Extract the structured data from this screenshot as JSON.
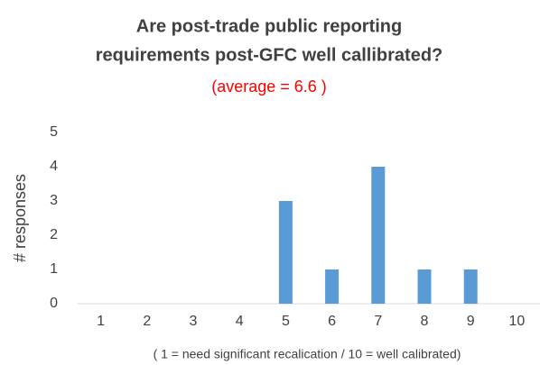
{
  "chart_data": {
    "type": "bar",
    "title": [
      "Are post-trade public reporting",
      "requirements post-GFC well callibrated?"
    ],
    "subtitle": "(average = 6.6 )",
    "x_label": "( 1 = need significant recalication / 10 = well calibrated)",
    "y_label": "# responses",
    "categories": [
      "1",
      "2",
      "3",
      "4",
      "5",
      "6",
      "7",
      "8",
      "9",
      "10"
    ],
    "values": [
      0,
      0,
      0,
      0,
      3,
      1,
      4,
      1,
      1,
      0
    ],
    "color": "#5b9bd5",
    "ylim": [
      0,
      5
    ],
    "yticks": [
      0,
      1,
      2,
      3,
      4,
      5
    ],
    "grid": false
  }
}
